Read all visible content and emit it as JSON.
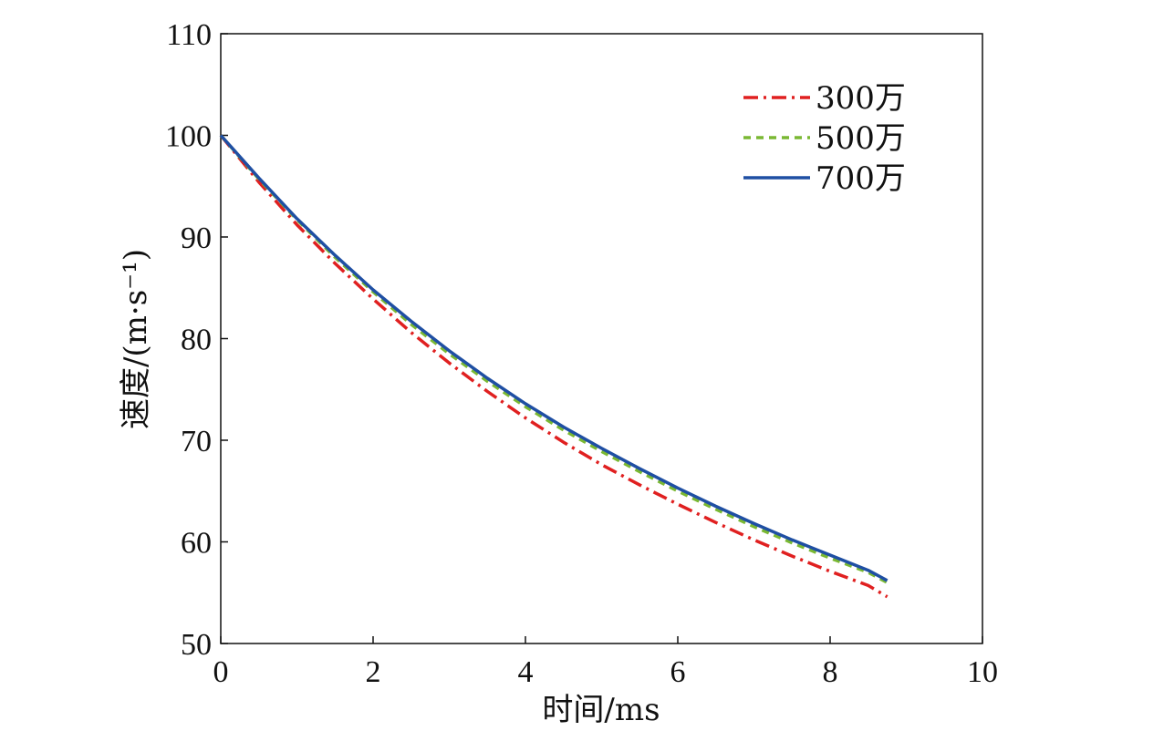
{
  "chart_data": {
    "type": "line",
    "xlabel": "时间/ms",
    "ylabel": "速度/(m·s⁻¹)",
    "xlim": [
      0,
      10
    ],
    "ylim": [
      50,
      110
    ],
    "xticks": [
      "0",
      "2",
      "4",
      "6",
      "8",
      "10"
    ],
    "yticks": [
      "50",
      "60",
      "70",
      "80",
      "90",
      "100",
      "110"
    ],
    "grid": false,
    "legend_position": "top-right",
    "series": [
      {
        "name": "300万",
        "color": "#e02020",
        "style": "dash-dot",
        "x": [
          0,
          0.5,
          1,
          1.5,
          2,
          2.5,
          3,
          3.5,
          4,
          4.5,
          5,
          5.5,
          6,
          6.5,
          7,
          7.5,
          8,
          8.5,
          8.75
        ],
        "y": [
          100,
          95.4,
          91.2,
          87.4,
          83.9,
          80.6,
          77.6,
          74.8,
          72.2,
          69.8,
          67.6,
          65.6,
          63.7,
          61.9,
          60.2,
          58.6,
          57.1,
          55.7,
          54.6
        ]
      },
      {
        "name": "500万",
        "color": "#7ab833",
        "style": "dashed",
        "x": [
          0,
          0.5,
          1,
          1.5,
          2,
          2.5,
          3,
          3.5,
          4,
          4.5,
          5,
          5.5,
          6,
          6.5,
          7,
          7.5,
          8,
          8.5,
          8.75
        ],
        "y": [
          100,
          95.7,
          91.7,
          88.0,
          84.6,
          81.4,
          78.5,
          75.8,
          73.3,
          71.0,
          68.9,
          66.9,
          65.0,
          63.2,
          61.5,
          59.9,
          58.4,
          57.0,
          56.0
        ]
      },
      {
        "name": "700万",
        "color": "#1f4fa3",
        "style": "solid",
        "x": [
          0,
          0.5,
          1,
          1.5,
          2,
          2.5,
          3,
          3.5,
          4,
          4.5,
          5,
          5.5,
          6,
          6.5,
          7,
          7.5,
          8,
          8.5,
          8.75
        ],
        "y": [
          100,
          95.8,
          91.8,
          88.2,
          84.8,
          81.7,
          78.8,
          76.1,
          73.6,
          71.3,
          69.2,
          67.2,
          65.3,
          63.5,
          61.8,
          60.2,
          58.7,
          57.2,
          56.2
        ]
      }
    ]
  }
}
